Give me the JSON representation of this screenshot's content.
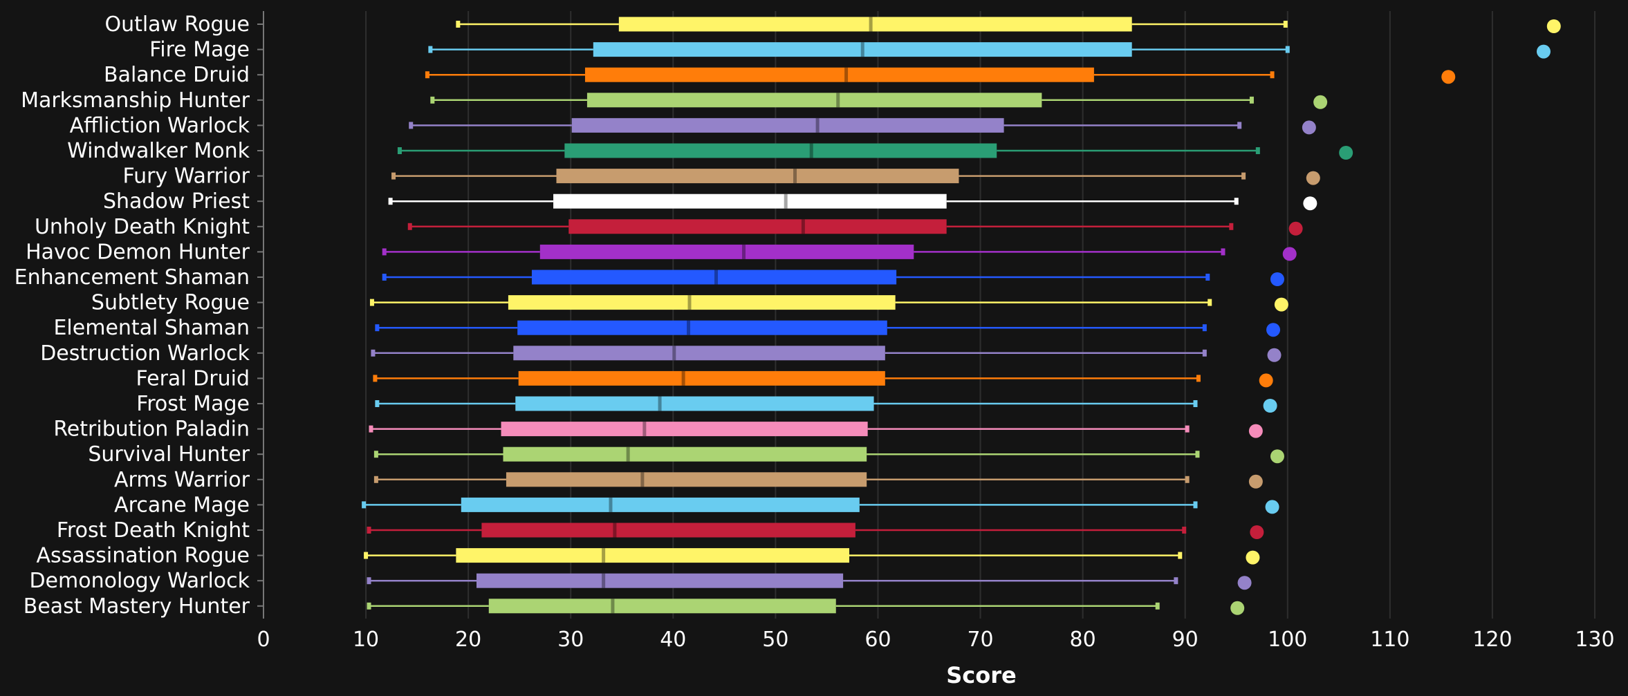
{
  "chart_data": {
    "type": "boxplot",
    "xlabel": "Score",
    "xlim": [
      0,
      130
    ],
    "xticks": [
      0,
      10,
      20,
      30,
      40,
      50,
      60,
      70,
      80,
      90,
      100,
      110,
      120,
      130
    ],
    "grid": true,
    "categories": [
      "Outlaw Rogue",
      "Fire Mage",
      "Balance Druid",
      "Marksmanship Hunter",
      "Affliction Warlock",
      "Windwalker Monk",
      "Fury Warrior",
      "Shadow Priest",
      "Unholy Death Knight",
      "Havoc Demon Hunter",
      "Enhancement Shaman",
      "Subtlety Rogue",
      "Elemental Shaman",
      "Destruction Warlock",
      "Feral Druid",
      "Frost Mage",
      "Retribution Paladin",
      "Survival Hunter",
      "Arms Warrior",
      "Arcane Mage",
      "Frost Death Knight",
      "Assassination Rogue",
      "Demonology Warlock",
      "Beast Mastery Hunter"
    ],
    "colors": [
      "#FFF468",
      "#69CCF0",
      "#FF7D0A",
      "#ABD473",
      "#9482C9",
      "#2A9E75",
      "#C79C6E",
      "#FFFFFF",
      "#C41F3B",
      "#A330C9",
      "#2459FF",
      "#FFF468",
      "#2459FF",
      "#9482C9",
      "#FF7D0A",
      "#69CCF0",
      "#F58CBA",
      "#ABD473",
      "#C79C6E",
      "#69CCF0",
      "#C41F3B",
      "#FFF468",
      "#9482C9",
      "#ABD473"
    ],
    "boxes": [
      {
        "min": 19.0,
        "q1": 34.7,
        "median": 59.3,
        "q3": 84.8,
        "max": 99.8,
        "outlier": 126.0
      },
      {
        "min": 16.3,
        "q1": 32.2,
        "median": 58.5,
        "q3": 84.8,
        "max": 100.0,
        "outlier": 125.0
      },
      {
        "min": 16.0,
        "q1": 31.4,
        "median": 56.9,
        "q3": 81.1,
        "max": 98.5,
        "outlier": 115.7
      },
      {
        "min": 16.5,
        "q1": 31.6,
        "median": 56.1,
        "q3": 76.0,
        "max": 96.5,
        "outlier": 103.2
      },
      {
        "min": 14.4,
        "q1": 30.1,
        "median": 54.1,
        "q3": 72.3,
        "max": 95.3,
        "outlier": 102.1
      },
      {
        "min": 13.3,
        "q1": 29.4,
        "median": 53.5,
        "q3": 71.6,
        "max": 97.1,
        "outlier": 105.7
      },
      {
        "min": 12.7,
        "q1": 28.6,
        "median": 51.9,
        "q3": 67.9,
        "max": 95.7,
        "outlier": 102.5
      },
      {
        "min": 12.4,
        "q1": 28.3,
        "median": 51.0,
        "q3": 66.7,
        "max": 95.0,
        "outlier": 102.2
      },
      {
        "min": 14.3,
        "q1": 29.8,
        "median": 52.7,
        "q3": 66.7,
        "max": 94.5,
        "outlier": 100.8
      },
      {
        "min": 11.8,
        "q1": 27.0,
        "median": 46.9,
        "q3": 63.5,
        "max": 93.7,
        "outlier": 100.2
      },
      {
        "min": 11.8,
        "q1": 26.2,
        "median": 44.2,
        "q3": 61.8,
        "max": 92.2,
        "outlier": 99.0
      },
      {
        "min": 10.6,
        "q1": 23.9,
        "median": 41.6,
        "q3": 61.7,
        "max": 92.4,
        "outlier": 99.4
      },
      {
        "min": 11.1,
        "q1": 24.8,
        "median": 41.5,
        "q3": 60.9,
        "max": 91.9,
        "outlier": 98.6
      },
      {
        "min": 10.7,
        "q1": 24.4,
        "median": 40.1,
        "q3": 60.7,
        "max": 91.9,
        "outlier": 98.7
      },
      {
        "min": 10.9,
        "q1": 24.9,
        "median": 41.0,
        "q3": 60.7,
        "max": 91.3,
        "outlier": 97.9
      },
      {
        "min": 11.1,
        "q1": 24.6,
        "median": 38.7,
        "q3": 59.6,
        "max": 91.0,
        "outlier": 98.3
      },
      {
        "min": 10.5,
        "q1": 23.2,
        "median": 37.2,
        "q3": 59.0,
        "max": 90.2,
        "outlier": 96.9
      },
      {
        "min": 11.0,
        "q1": 23.4,
        "median": 35.6,
        "q3": 58.9,
        "max": 91.2,
        "outlier": 99.0
      },
      {
        "min": 11.0,
        "q1": 23.7,
        "median": 37.0,
        "q3": 58.9,
        "max": 90.2,
        "outlier": 96.9
      },
      {
        "min": 9.8,
        "q1": 19.3,
        "median": 33.9,
        "q3": 58.2,
        "max": 91.0,
        "outlier": 98.5
      },
      {
        "min": 10.3,
        "q1": 21.3,
        "median": 34.3,
        "q3": 57.8,
        "max": 89.9,
        "outlier": 97.0
      },
      {
        "min": 10.0,
        "q1": 18.8,
        "median": 33.2,
        "q3": 57.2,
        "max": 89.5,
        "outlier": 96.6
      },
      {
        "min": 10.3,
        "q1": 20.8,
        "median": 33.2,
        "q3": 56.6,
        "max": 89.1,
        "outlier": 95.8
      },
      {
        "min": 10.3,
        "q1": 22.0,
        "median": 34.1,
        "q3": 55.9,
        "max": 87.3,
        "outlier": 95.1
      }
    ]
  }
}
